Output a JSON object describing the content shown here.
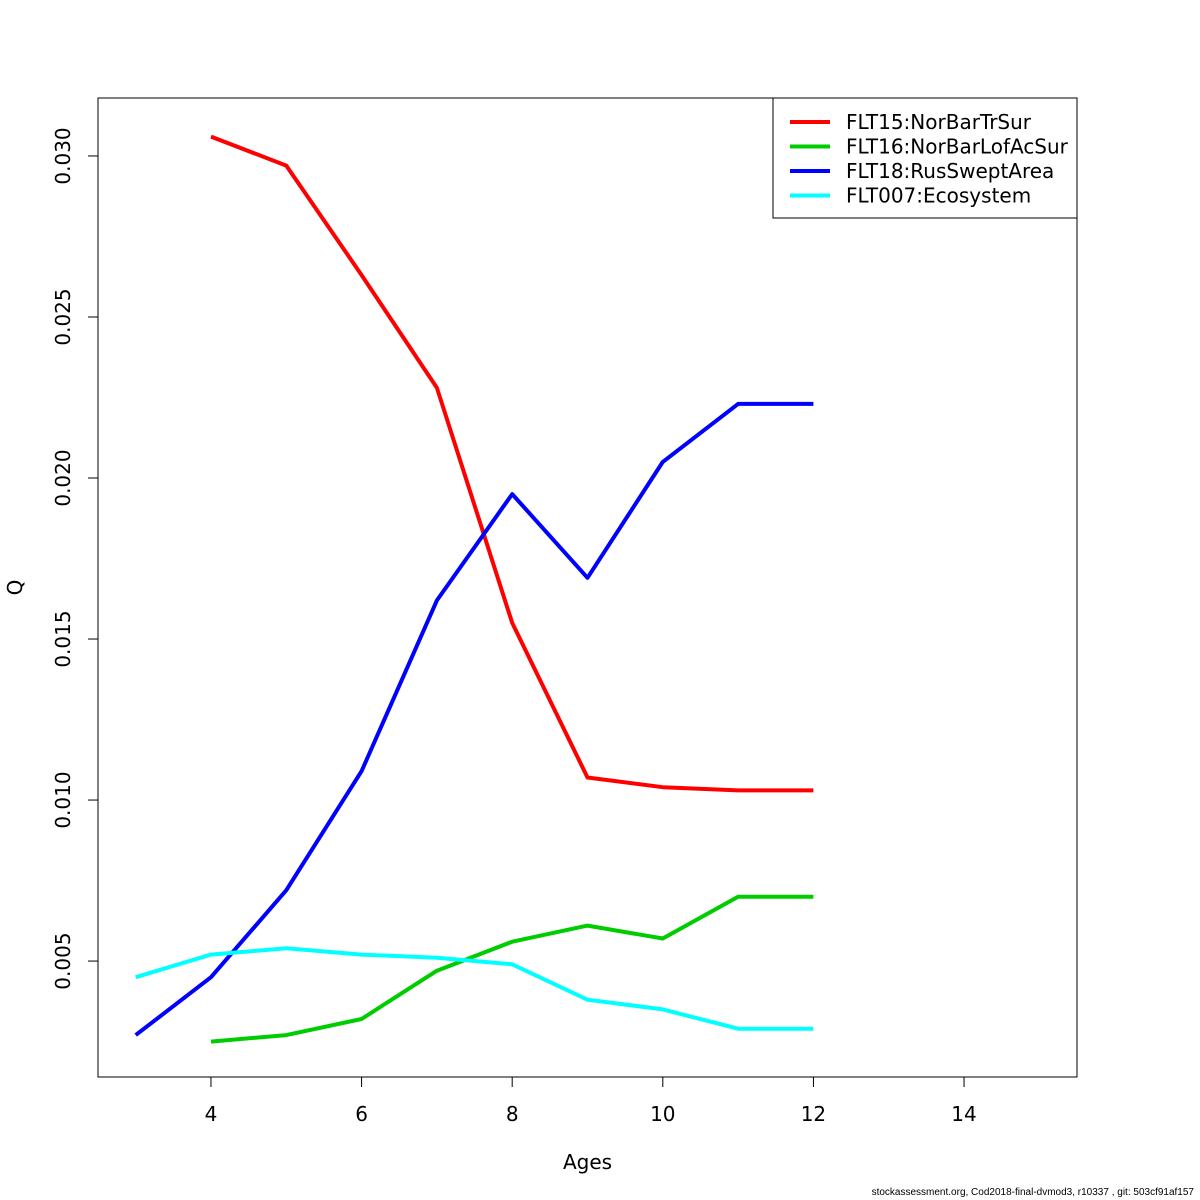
{
  "chart_data": {
    "type": "line",
    "xlabel": "Ages",
    "ylabel": "Q",
    "xlim": [
      2.5,
      15.5
    ],
    "ylim": [
      0.0014,
      0.0318
    ],
    "x_ticks": [
      4,
      6,
      8,
      10,
      12,
      14
    ],
    "x_tick_labels": [
      "4",
      "6",
      "8",
      "10",
      "12",
      "14"
    ],
    "y_ticks": [
      0.005,
      0.01,
      0.015,
      0.02,
      0.025,
      0.03
    ],
    "y_tick_labels": [
      "0.005",
      "0.010",
      "0.015",
      "0.020",
      "0.025",
      "0.030"
    ],
    "legend_position": "top-right",
    "grid": false,
    "series": [
      {
        "name": "FLT15:NorBarTrSur",
        "color": "#ff0000",
        "x": [
          4,
          5,
          6,
          7,
          8,
          9,
          10,
          11,
          12
        ],
        "values": [
          0.0306,
          0.0297,
          0.0263,
          0.0228,
          0.0155,
          0.0107,
          0.0104,
          0.0103,
          0.0103
        ]
      },
      {
        "name": "FLT16:NorBarLofAcSur",
        "color": "#00cd00",
        "x": [
          4,
          5,
          6,
          7,
          8,
          9,
          10,
          11,
          12
        ],
        "values": [
          0.0025,
          0.0027,
          0.0032,
          0.0047,
          0.0056,
          0.0061,
          0.0057,
          0.007,
          0.007
        ]
      },
      {
        "name": "FLT18:RusSweptArea",
        "color": "#0000ff",
        "x": [
          3,
          4,
          5,
          6,
          7,
          8,
          9,
          10,
          11,
          12
        ],
        "values": [
          0.0027,
          0.0045,
          0.0072,
          0.0109,
          0.0162,
          0.0195,
          0.0169,
          0.0205,
          0.0223,
          0.0223
        ]
      },
      {
        "name": "FLT007:Ecosystem",
        "color": "#00ffff",
        "x": [
          3,
          4,
          5,
          6,
          7,
          8,
          9,
          10,
          11,
          12
        ],
        "values": [
          0.0045,
          0.0052,
          0.0054,
          0.0052,
          0.0051,
          0.0049,
          0.0038,
          0.0035,
          0.0029,
          0.0029
        ]
      }
    ]
  },
  "footer": {
    "text": "stockassessment.org, Cod2018-final-dvmod3, r10337 , git: 503cf91af157"
  }
}
